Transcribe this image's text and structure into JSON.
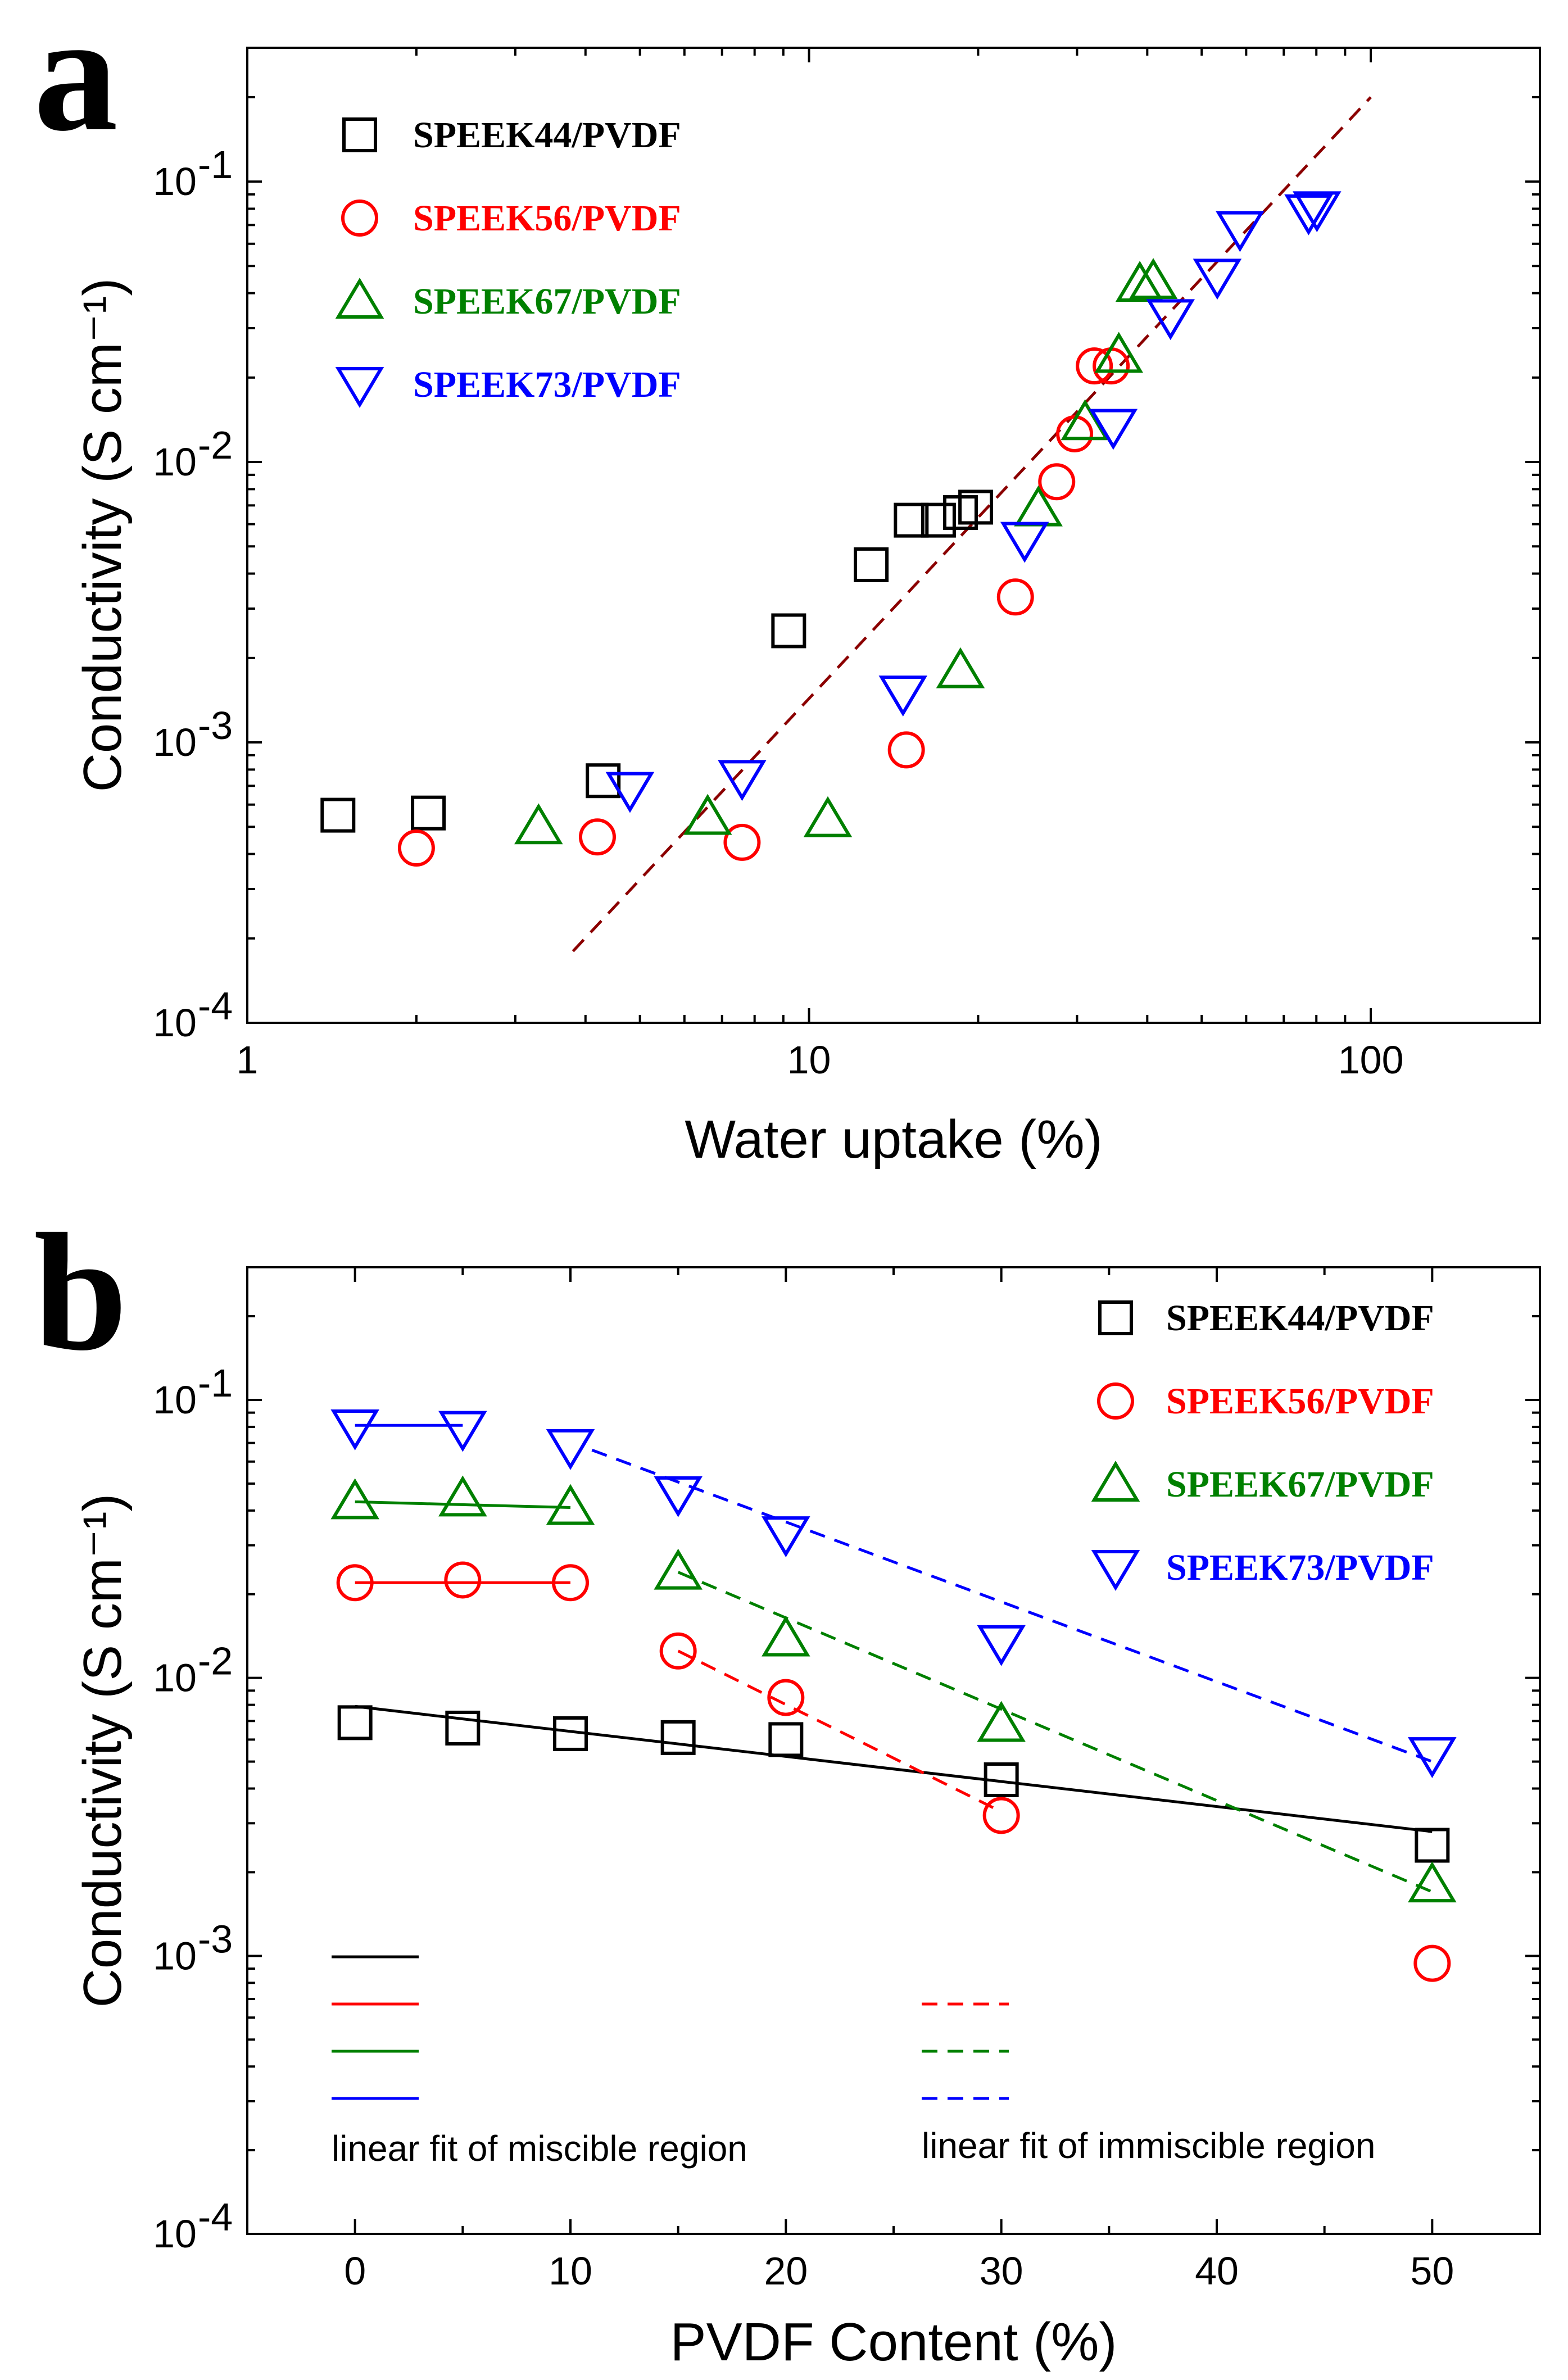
{
  "chart_data": [
    {
      "type": "scatter",
      "panel_label": "a",
      "xlabel": "Water uptake (%)",
      "ylabel": "Conductivity (S cm⁻¹)",
      "xscale": "log",
      "yscale": "log",
      "xlim": [
        1,
        200
      ],
      "ylim": [
        0.0001,
        0.3
      ],
      "x_ticks": [
        {
          "value": 1,
          "label": "1"
        },
        {
          "value": 10,
          "label": "10"
        },
        {
          "value": 100,
          "label": "100"
        }
      ],
      "y_ticks": [
        {
          "value": 0.0001,
          "base": "10",
          "exp": "-4"
        },
        {
          "value": 0.001,
          "base": "10",
          "exp": "-3"
        },
        {
          "value": 0.01,
          "base": "10",
          "exp": "-2"
        },
        {
          "value": 0.1,
          "base": "10",
          "exp": "-1"
        }
      ],
      "legend_position": "top-left",
      "series": [
        {
          "name": "SPEEK44/PVDF",
          "marker": "square",
          "color": "#000000",
          "x": [
            1.45,
            2.1,
            4.3,
            9.2,
            12.9,
            15.2,
            17.0,
            18.6,
            19.8
          ],
          "y": [
            0.00055,
            0.00056,
            0.00073,
            0.0025,
            0.0043,
            0.0062,
            0.0062,
            0.0066,
            0.0069
          ]
        },
        {
          "name": "SPEEK56/PVDF",
          "marker": "circle",
          "color": "#ff0000",
          "x": [
            2.0,
            4.2,
            7.6,
            14.9,
            23.3,
            27.6,
            29.7,
            32.2,
            34.5
          ],
          "y": [
            0.00042,
            0.00046,
            0.00044,
            0.00094,
            0.0033,
            0.0085,
            0.0126,
            0.022,
            0.022
          ]
        },
        {
          "name": "SPEEK67/PVDF",
          "marker": "triangle-up",
          "color": "#008000",
          "x": [
            3.3,
            6.6,
            10.8,
            18.6,
            25.6,
            31.0,
            35.6,
            38.8,
            41.0
          ],
          "y": [
            0.0005,
            0.00054,
            0.00053,
            0.0018,
            0.0068,
            0.0138,
            0.024,
            0.043,
            0.044
          ]
        },
        {
          "name": "SPEEK73/PVDF",
          "marker": "triangle-down",
          "color": "#0000ff",
          "x": [
            4.8,
            7.6,
            14.7,
            24.2,
            34.8,
            44.0,
            53.3,
            58.5,
            77.5,
            80.2
          ],
          "y": [
            0.00068,
            0.00075,
            0.0015,
            0.0053,
            0.0134,
            0.033,
            0.046,
            0.068,
            0.078,
            0.08
          ]
        }
      ],
      "fit_line": {
        "style": "dashed",
        "color": "#8b0000",
        "x": [
          3.8,
          100
        ],
        "y": [
          0.00018,
          0.2
        ]
      }
    },
    {
      "type": "scatter",
      "panel_label": "b",
      "xlabel": "PVDF Content (%)",
      "ylabel": "Conductivity (S cm⁻¹)",
      "xscale": "linear",
      "yscale": "log",
      "xlim": [
        -5,
        55
      ],
      "ylim": [
        0.0001,
        0.3
      ],
      "x_ticks": [
        {
          "value": 0,
          "label": "0"
        },
        {
          "value": 10,
          "label": "10"
        },
        {
          "value": 20,
          "label": "20"
        },
        {
          "value": 30,
          "label": "30"
        },
        {
          "value": 40,
          "label": "40"
        },
        {
          "value": 50,
          "label": "50"
        }
      ],
      "y_ticks": [
        {
          "value": 0.0001,
          "base": "10",
          "exp": "-4"
        },
        {
          "value": 0.001,
          "base": "10",
          "exp": "-3"
        },
        {
          "value": 0.01,
          "base": "10",
          "exp": "-2"
        },
        {
          "value": 0.1,
          "base": "10",
          "exp": "-1"
        }
      ],
      "legend_position": "top-right",
      "series": [
        {
          "name": "SPEEK44/PVDF",
          "marker": "square",
          "color": "#000000",
          "x": [
            0,
            5,
            10,
            15,
            20,
            30,
            50
          ],
          "y": [
            0.0069,
            0.0066,
            0.0063,
            0.0061,
            0.006,
            0.0043,
            0.0025
          ]
        },
        {
          "name": "SPEEK56/PVDF",
          "marker": "circle",
          "color": "#ff0000",
          "x": [
            0,
            5,
            10,
            15,
            20,
            30,
            50
          ],
          "y": [
            0.022,
            0.0225,
            0.022,
            0.0125,
            0.0085,
            0.0032,
            0.00094
          ]
        },
        {
          "name": "SPEEK67/PVDF",
          "marker": "triangle-up",
          "color": "#008000",
          "x": [
            0,
            5,
            10,
            15,
            20,
            30,
            50
          ],
          "y": [
            0.043,
            0.044,
            0.041,
            0.024,
            0.0138,
            0.0068,
            0.0018
          ]
        },
        {
          "name": "SPEEK73/PVDF",
          "marker": "triangle-down",
          "color": "#0000ff",
          "x": [
            0,
            5,
            10,
            15,
            20,
            30,
            50
          ],
          "y": [
            0.08,
            0.079,
            0.068,
            0.046,
            0.033,
            0.0134,
            0.0053
          ]
        }
      ],
      "fit_lines": [
        {
          "color": "#000000",
          "style": "solid",
          "x": [
            0,
            50
          ],
          "y": [
            0.0079,
            0.0028
          ]
        },
        {
          "color": "#ff0000",
          "style": "solid",
          "x": [
            0,
            10
          ],
          "y": [
            0.022,
            0.022
          ]
        },
        {
          "color": "#ff0000",
          "style": "dashed",
          "x": [
            15,
            30
          ],
          "y": [
            0.0125,
            0.0033
          ]
        },
        {
          "color": "#008000",
          "style": "solid",
          "x": [
            0,
            10
          ],
          "y": [
            0.043,
            0.041
          ]
        },
        {
          "color": "#008000",
          "style": "dashed",
          "x": [
            15,
            50
          ],
          "y": [
            0.024,
            0.0017
          ]
        },
        {
          "color": "#0000ff",
          "style": "solid",
          "x": [
            0,
            5
          ],
          "y": [
            0.081,
            0.081
          ]
        },
        {
          "color": "#0000ff",
          "style": "dashed",
          "x": [
            11,
            50
          ],
          "y": [
            0.066,
            0.005
          ]
        }
      ],
      "fit_legend": {
        "miscible_label": "linear fit of miscible region",
        "immiscible_label": "linear fit of immiscible region",
        "miscible_colors": [
          "#000000",
          "#ff0000",
          "#008000",
          "#0000ff"
        ],
        "immiscible_colors": [
          "#ff0000",
          "#008000",
          "#0000ff"
        ]
      }
    }
  ]
}
